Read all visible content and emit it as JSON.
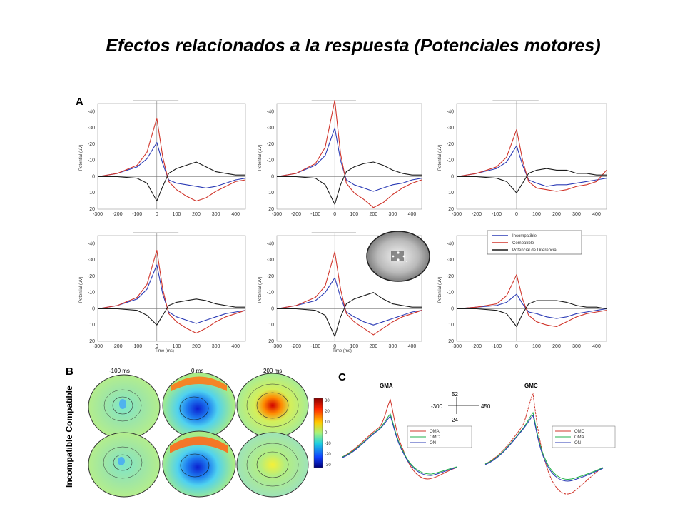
{
  "slide": {
    "title": "Efectos relacionados a la respuesta (Potenciales motores)"
  },
  "panel_a": {
    "label": "A",
    "ylabel": "Potential (µV)",
    "xlabel": "Time (ms)",
    "yticks": [
      "-40",
      "-30",
      "-20",
      "-10",
      "0",
      "10",
      "20"
    ],
    "xticks": [
      "-300",
      "-200",
      "-100",
      "0",
      "100",
      "200",
      "300",
      "400"
    ],
    "legend": [
      "Incompatible",
      "Compatible",
      "Potencial de Diferencia"
    ]
  },
  "panel_b": {
    "label": "B",
    "row_label": "Incompatible Compatible",
    "time_labels": [
      "-100 ms",
      "0 ms",
      "200 ms"
    ],
    "colorbar_ticks": [
      "30",
      "20",
      "10",
      "0",
      "-10",
      "-20",
      "-30"
    ]
  },
  "panel_c": {
    "label": "C",
    "plots": [
      {
        "title": "GMA",
        "legend": [
          "OMA",
          "OMC",
          "ON"
        ]
      },
      {
        "title": "GMC",
        "legend": [
          "OMC",
          "OMA",
          "ON"
        ]
      }
    ],
    "scale": {
      "top": "52",
      "bottom": "24",
      "left": "-300",
      "right": "450"
    }
  },
  "colors": {
    "incompatible": "#2b3bb5",
    "compatible": "#d0352b",
    "difference": "#1a1a1a",
    "green": "#22b24c"
  },
  "chart_data": [
    {
      "type": "line",
      "panel": "A",
      "xlabel": "Time (ms)",
      "ylabel": "Potential (µV)",
      "xlim": [
        -300,
        450
      ],
      "ylim": [
        -45,
        20
      ],
      "x": [
        -300,
        -200,
        -100,
        -50,
        0,
        30,
        60,
        100,
        150,
        200,
        250,
        300,
        350,
        400,
        450
      ],
      "plots": [
        {
          "series": [
            {
              "name": "Incompatible",
              "values": [
                0,
                -2,
                -6,
                -11,
                -21,
                -8,
                2,
                4,
                5,
                6,
                7,
                6,
                4,
                2,
                1
              ]
            },
            {
              "name": "Compatible",
              "values": [
                0,
                -2,
                -7,
                -15,
                -36,
                -12,
                3,
                8,
                12,
                15,
                13,
                9,
                6,
                3,
                2
              ]
            },
            {
              "name": "Potencial de Diferencia",
              "values": [
                0,
                0,
                1,
                4,
                15,
                6,
                -2,
                -5,
                -7,
                -9,
                -6,
                -3,
                -2,
                -1,
                -1
              ]
            }
          ]
        },
        {
          "series": [
            {
              "name": "Incompatible",
              "values": [
                0,
                -2,
                -7,
                -13,
                -30,
                -10,
                2,
                5,
                7,
                9,
                7,
                5,
                4,
                2,
                1
              ]
            },
            {
              "name": "Compatible",
              "values": [
                0,
                -2,
                -8,
                -18,
                -47,
                -14,
                4,
                10,
                14,
                19,
                16,
                11,
                7,
                4,
                2
              ]
            },
            {
              "name": "Potencial de Diferencia",
              "values": [
                0,
                0,
                1,
                5,
                17,
                5,
                -3,
                -6,
                -8,
                -9,
                -7,
                -4,
                -2,
                -1,
                -1
              ]
            }
          ]
        },
        {
          "series": [
            {
              "name": "Incompatible",
              "values": [
                0,
                -2,
                -5,
                -9,
                -19,
                -7,
                2,
                4,
                6,
                5,
                5,
                4,
                3,
                2,
                1
              ]
            },
            {
              "name": "Compatible",
              "values": [
                0,
                -2,
                -6,
                -12,
                -29,
                -10,
                3,
                7,
                8,
                9,
                8,
                6,
                5,
                3,
                -4
              ]
            },
            {
              "name": "Potencial de Diferencia",
              "values": [
                0,
                0,
                1,
                3,
                10,
                4,
                -2,
                -4,
                -5,
                -4,
                -4,
                -2,
                -2,
                -1,
                -1
              ]
            }
          ]
        },
        {
          "series": [
            {
              "name": "Incompatible",
              "values": [
                0,
                -2,
                -6,
                -12,
                -27,
                -9,
                2,
                5,
                7,
                9,
                7,
                5,
                3,
                2,
                1
              ]
            },
            {
              "name": "Compatible",
              "values": [
                0,
                -2,
                -7,
                -15,
                -36,
                -12,
                3,
                8,
                12,
                15,
                12,
                8,
                5,
                3,
                1
              ]
            },
            {
              "name": "Potencial de Diferencia",
              "values": [
                0,
                0,
                1,
                4,
                10,
                4,
                -2,
                -4,
                -5,
                -6,
                -5,
                -3,
                -2,
                -1,
                -1
              ]
            }
          ]
        },
        {
          "series": [
            {
              "name": "Incompatible",
              "values": [
                0,
                -2,
                -5,
                -10,
                -19,
                -7,
                2,
                5,
                8,
                10,
                8,
                6,
                4,
                2,
                1
              ]
            },
            {
              "name": "Compatible",
              "values": [
                0,
                -2,
                -7,
                -14,
                -35,
                -12,
                3,
                8,
                12,
                16,
                12,
                8,
                5,
                3,
                1
              ]
            },
            {
              "name": "Potencial de Diferencia",
              "values": [
                0,
                0,
                1,
                4,
                17,
                5,
                -3,
                -6,
                -8,
                -10,
                -6,
                -3,
                -2,
                -1,
                -1
              ]
            }
          ]
        },
        {
          "series": [
            {
              "name": "Incompatible",
              "values": [
                0,
                -1,
                -2,
                -4,
                -9,
                -3,
                2,
                3,
                5,
                6,
                5,
                3,
                2,
                1,
                0
              ]
            },
            {
              "name": "Compatible",
              "values": [
                0,
                -1,
                -3,
                -8,
                -21,
                -6,
                4,
                8,
                10,
                11,
                8,
                5,
                3,
                2,
                1
              ]
            },
            {
              "name": "Potencial de Diferencia",
              "values": [
                0,
                0,
                1,
                3,
                11,
                3,
                -3,
                -5,
                -5,
                -5,
                -4,
                -2,
                -1,
                -1,
                0
              ]
            }
          ]
        }
      ]
    }
  ]
}
